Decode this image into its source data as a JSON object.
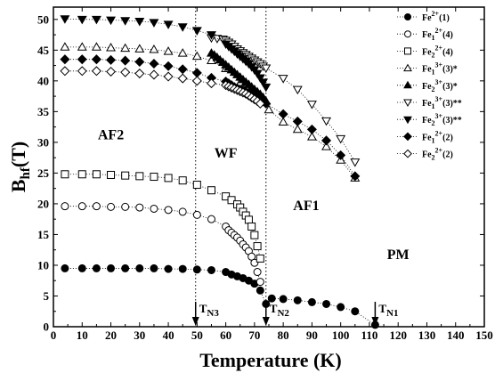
{
  "chart_data": {
    "type": "scatter",
    "xlabel": "Temperature (K)",
    "ylabel": "B",
    "ylabel_sub": "hf",
    "ylabel_unit": "(T)",
    "xlim": [
      0,
      150
    ],
    "ylim": [
      0,
      52
    ],
    "xticks": [
      0,
      10,
      20,
      30,
      40,
      50,
      60,
      70,
      80,
      90,
      100,
      110,
      120,
      130,
      140,
      150
    ],
    "yticks": [
      0,
      5,
      10,
      15,
      20,
      25,
      30,
      35,
      40,
      45,
      50
    ],
    "grid": false,
    "legend_position": "top-right",
    "regions": [
      {
        "label": "AF2",
        "x": 20,
        "y": 30.5
      },
      {
        "label": "WF",
        "x": 60,
        "y": 27.5
      },
      {
        "label": "AF1",
        "x": 88,
        "y": 19
      },
      {
        "label": "PM",
        "x": 120,
        "y": 11
      }
    ],
    "transitions": [
      {
        "name": "T",
        "sub": "N3",
        "x": 49.5,
        "dotted_line": true,
        "arrow": true
      },
      {
        "name": "T",
        "sub": "N2",
        "x": 74,
        "dotted_line": true,
        "arrow": true
      },
      {
        "name": "T",
        "sub": "N1",
        "x": 112,
        "dotted_line": false,
        "arrow": true
      }
    ],
    "series": [
      {
        "label_main": "Fe",
        "label_ion": "",
        "label_charge": "2+",
        "label_site": "(1)",
        "marker": "circle-filled",
        "x": [
          4,
          10,
          15,
          20,
          25,
          30,
          35,
          40,
          45,
          50,
          55,
          60,
          62,
          64,
          66,
          68,
          70,
          72,
          74,
          76,
          80,
          85,
          90,
          95,
          100,
          105,
          112
        ],
        "y": [
          9.5,
          9.5,
          9.5,
          9.5,
          9.5,
          9.5,
          9.5,
          9.4,
          9.4,
          9.3,
          9.2,
          8.9,
          8.5,
          8.2,
          7.9,
          7.5,
          7.0,
          5.9,
          3.7,
          4.6,
          4.5,
          4.3,
          4.0,
          3.7,
          3.2,
          2.5,
          0.3
        ]
      },
      {
        "label_main": "Fe",
        "label_ion": "1",
        "label_charge": "2+",
        "label_site": "(4)",
        "marker": "circle-open",
        "x": [
          4,
          10,
          15,
          20,
          25,
          30,
          35,
          40,
          45,
          50,
          55,
          60,
          61,
          62,
          63,
          64,
          65,
          66,
          67,
          68,
          69,
          70,
          71,
          72
        ],
        "y": [
          19.6,
          19.6,
          19.6,
          19.5,
          19.5,
          19.4,
          19.2,
          19.0,
          18.7,
          18.2,
          17.5,
          16.3,
          15.7,
          15.3,
          14.9,
          14.5,
          14.0,
          13.4,
          12.9,
          12.3,
          11.4,
          10.4,
          8.9,
          7.3
        ]
      },
      {
        "label_main": "Fe",
        "label_ion": "2",
        "label_charge": "2+",
        "label_site": "(4)",
        "marker": "square-open",
        "x": [
          4,
          10,
          15,
          20,
          25,
          30,
          35,
          40,
          45,
          50,
          55,
          60,
          62,
          64,
          65,
          66,
          67,
          68,
          69,
          70,
          71,
          72
        ],
        "y": [
          24.8,
          24.8,
          24.8,
          24.7,
          24.6,
          24.5,
          24.4,
          24.2,
          23.8,
          23.1,
          22.2,
          21.2,
          20.6,
          19.9,
          19.4,
          18.7,
          18.1,
          17.4,
          16.3,
          14.9,
          13.1,
          11.1
        ]
      },
      {
        "label_main": "Fe",
        "label_ion": "1",
        "label_charge": "3+",
        "label_site": "(3)*",
        "marker": "triangle-up-open",
        "x": [
          4,
          10,
          15,
          20,
          25,
          30,
          35,
          40,
          45,
          50,
          55,
          60,
          65,
          70,
          75,
          80,
          85,
          90,
          95,
          100,
          105
        ],
        "y": [
          45.5,
          45.5,
          45.5,
          45.4,
          45.3,
          45.2,
          45.1,
          44.8,
          44.5,
          44.0,
          43.3,
          42.0,
          39.7,
          37.6,
          35.3,
          33.3,
          32.1,
          30.9,
          29.3,
          27.1,
          24.2
        ]
      },
      {
        "label_main": "Fe",
        "label_ion": "2",
        "label_charge": "3+",
        "label_site": "(3)*",
        "marker": "triangle-up-filled",
        "x": [
          55,
          56,
          57,
          58,
          59,
          60,
          61,
          62,
          63,
          64,
          65,
          66,
          67,
          68,
          69,
          70,
          71,
          72,
          73,
          74
        ],
        "y": [
          44.5,
          44.2,
          43.8,
          43.4,
          43.0,
          42.6,
          42.2,
          41.8,
          41.4,
          41.0,
          40.6,
          40.2,
          39.8,
          39.4,
          39.0,
          38.6,
          38.2,
          37.8,
          37.3,
          36.7
        ]
      },
      {
        "label_main": "Fe",
        "label_ion": "1",
        "label_charge": "3+",
        "label_site": "(3)**",
        "marker": "triangle-down-open",
        "x": [
          55,
          57,
          59,
          60,
          61,
          62,
          63,
          64,
          65,
          66,
          67,
          68,
          69,
          70,
          71,
          72,
          73,
          74,
          80,
          85,
          90,
          95,
          100,
          105
        ],
        "y": [
          47.0,
          46.9,
          46.8,
          46.6,
          46.3,
          46.0,
          45.6,
          45.2,
          44.9,
          44.6,
          44.3,
          44.0,
          43.7,
          43.4,
          43.1,
          42.8,
          42.4,
          42.1,
          40.4,
          38.6,
          36.2,
          33.5,
          30.6,
          26.8
        ]
      },
      {
        "label_main": "Fe",
        "label_ion": "2",
        "label_charge": "3+",
        "label_site": "(3)**",
        "marker": "triangle-down-filled",
        "x": [
          4,
          10,
          15,
          20,
          25,
          30,
          35,
          40,
          45,
          50,
          55,
          60,
          61,
          62,
          63,
          64,
          65,
          66,
          67,
          68,
          69,
          70,
          71,
          72,
          73,
          74
        ],
        "y": [
          50.1,
          50.0,
          50.0,
          49.9,
          49.8,
          49.7,
          49.5,
          49.2,
          48.8,
          48.2,
          47.5,
          46.0,
          45.6,
          45.2,
          44.8,
          44.4,
          44.0,
          43.6,
          43.2,
          42.8,
          42.3,
          41.8,
          41.2,
          40.5,
          39.8,
          39.0
        ]
      },
      {
        "label_main": "Fe",
        "label_ion": "1",
        "label_charge": "2+",
        "label_site": "(2)",
        "marker": "diamond-filled",
        "x": [
          4,
          10,
          15,
          20,
          25,
          30,
          35,
          40,
          45,
          50,
          55,
          60,
          61,
          62,
          63,
          64,
          65,
          66,
          67,
          68,
          69,
          70,
          71,
          72,
          73,
          74,
          80,
          85,
          90,
          95,
          100,
          105
        ],
        "y": [
          43.5,
          43.5,
          43.5,
          43.4,
          43.3,
          43.1,
          42.8,
          42.4,
          41.9,
          41.3,
          40.5,
          39.9,
          39.6,
          39.3,
          39.0,
          38.8,
          38.6,
          38.4,
          38.2,
          38.0,
          37.8,
          37.6,
          37.3,
          37.0,
          36.7,
          36.3,
          34.6,
          33.4,
          32.1,
          30.3,
          27.9,
          24.5
        ]
      },
      {
        "label_main": "Fe",
        "label_ion": "2",
        "label_charge": "2+",
        "label_site": "(2)",
        "marker": "diamond-open",
        "x": [
          4,
          10,
          15,
          20,
          25,
          30,
          35,
          40,
          45,
          50,
          55,
          60,
          61,
          62,
          63,
          64,
          65,
          66,
          67,
          68,
          69,
          70,
          71,
          72
        ],
        "y": [
          41.6,
          41.6,
          41.6,
          41.5,
          41.4,
          41.2,
          41.0,
          40.7,
          40.4,
          40.0,
          39.6,
          39.3,
          39.1,
          38.9,
          38.7,
          38.5,
          38.3,
          38.1,
          37.9,
          37.6,
          37.3,
          37.0,
          36.7,
          36.3
        ]
      }
    ]
  }
}
